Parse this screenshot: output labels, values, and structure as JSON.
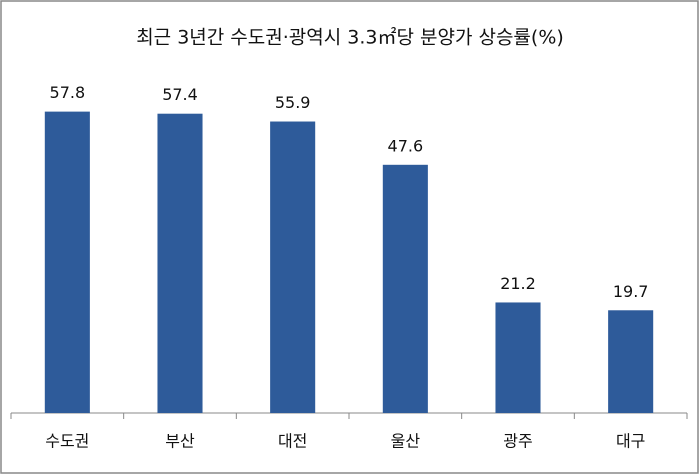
{
  "chart_data": {
    "type": "bar",
    "title": "최근 3년간 수도권·광역시 3.3㎡당 분양가 상승률(%)",
    "categories": [
      "수도권",
      "부산",
      "대전",
      "울산",
      "광주",
      "대구"
    ],
    "values": [
      57.8,
      57.4,
      55.9,
      47.6,
      21.2,
      19.7
    ],
    "color": "#2e5b9a",
    "ylim": [
      0,
      70
    ]
  }
}
